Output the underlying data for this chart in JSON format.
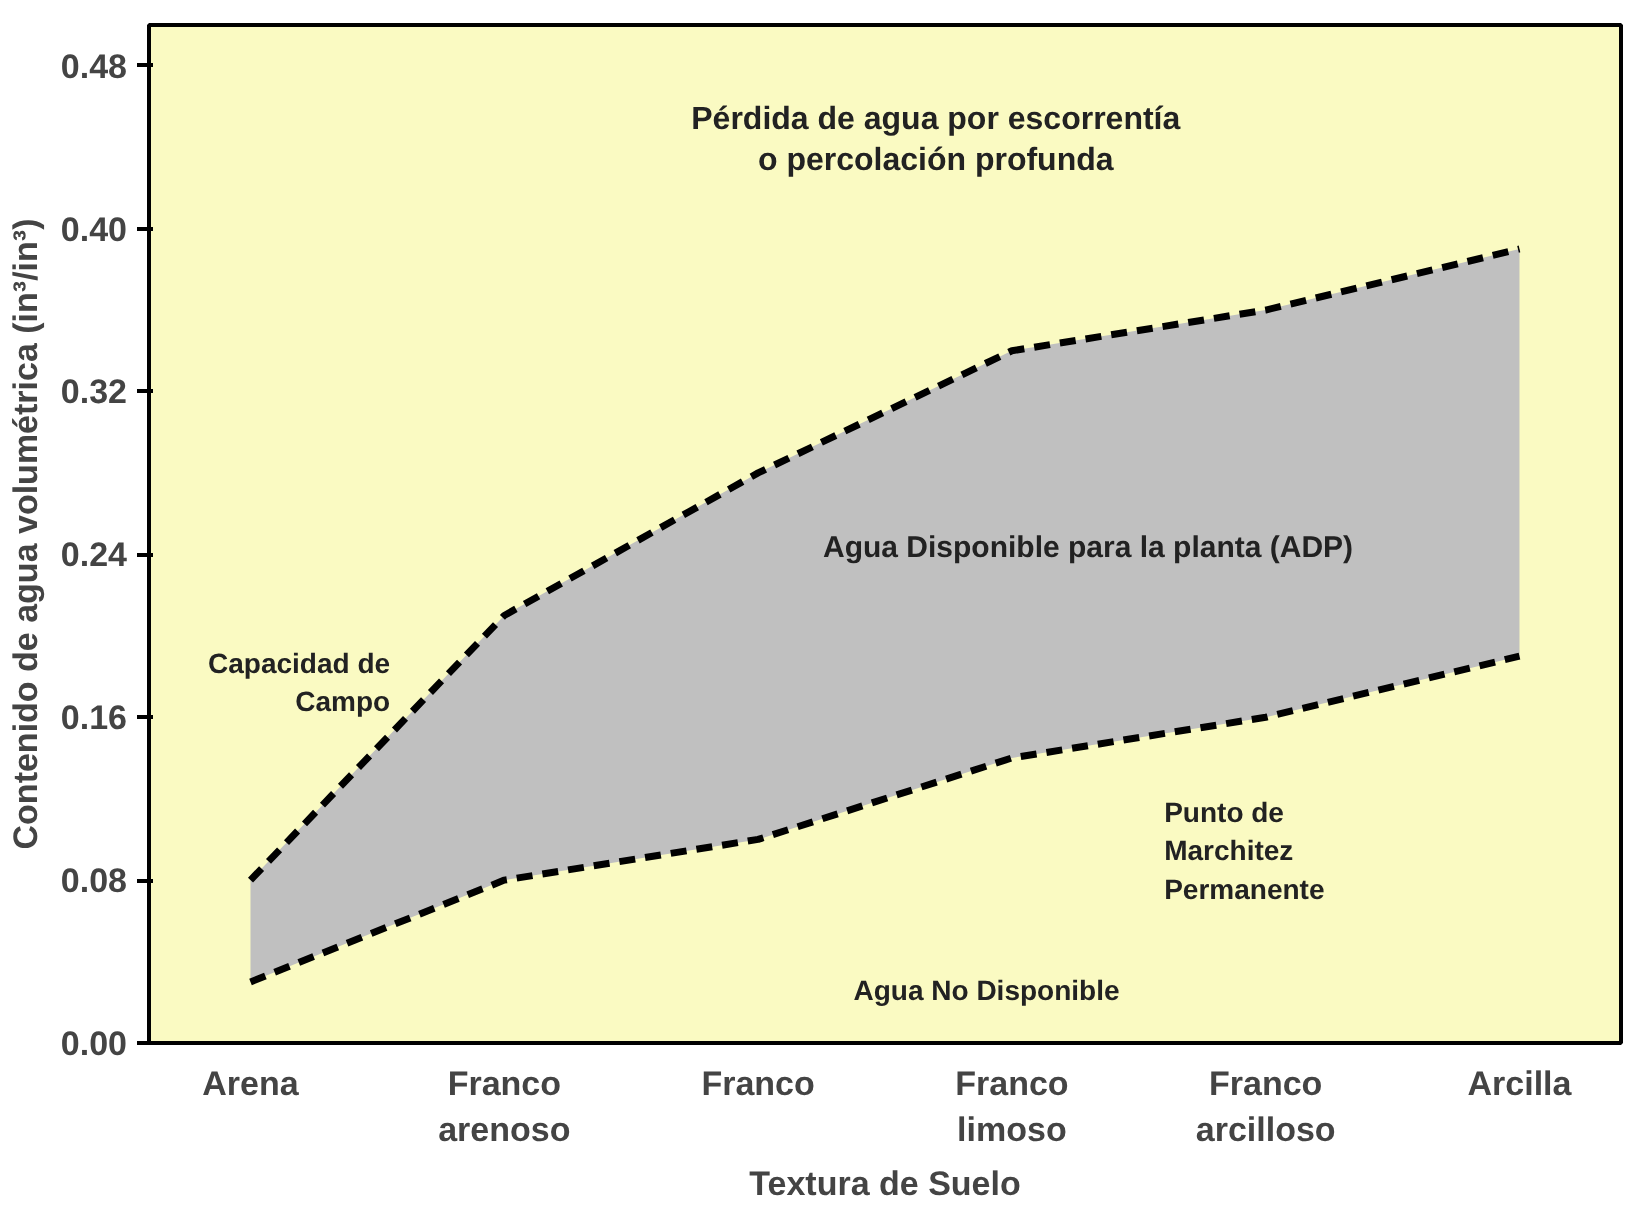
{
  "chart_data": {
    "type": "line",
    "xlabel": "Textura de Suelo",
    "ylabel": "Contenido de agua volumétrica (in³/in³)",
    "categories": [
      "Arena",
      "Franco arenoso",
      "Franco",
      "Franco limoso",
      "Franco arcilloso",
      "Arcilla"
    ],
    "series": [
      {
        "name": "Capacidad de Campo",
        "color": "#000000",
        "values": [
          0.08,
          0.21,
          0.28,
          0.34,
          0.36,
          0.39
        ],
        "lower": [
          0.03,
          0.08,
          0.1,
          0.14,
          0.16,
          0.19
        ],
        "upper": [
          0.08,
          0.21,
          0.28,
          0.34,
          0.36,
          0.39
        ]
      },
      {
        "name": "Punto de Marchitez Permanente",
        "color": "#000000",
        "values": [
          0.03,
          0.08,
          0.1,
          0.14,
          0.16,
          0.19
        ]
      }
    ],
    "ylim": [
      0,
      0.5
    ],
    "yticks": [
      {
        "value": 0,
        "label": "0.00"
      },
      0.08,
      0.16,
      0.24,
      0.32,
      {
        "value": 0.4,
        "label": "0.40"
      },
      0.48
    ],
    "annotations": [
      "Pérdida de agua por escorrentía\no percolación profunda",
      "Agua Disponible para la planta (ADP)",
      "Agua No Disponible"
    ],
    "grid": false,
    "legend": false,
    "line_style": "dashed",
    "marker": "none"
  }
}
